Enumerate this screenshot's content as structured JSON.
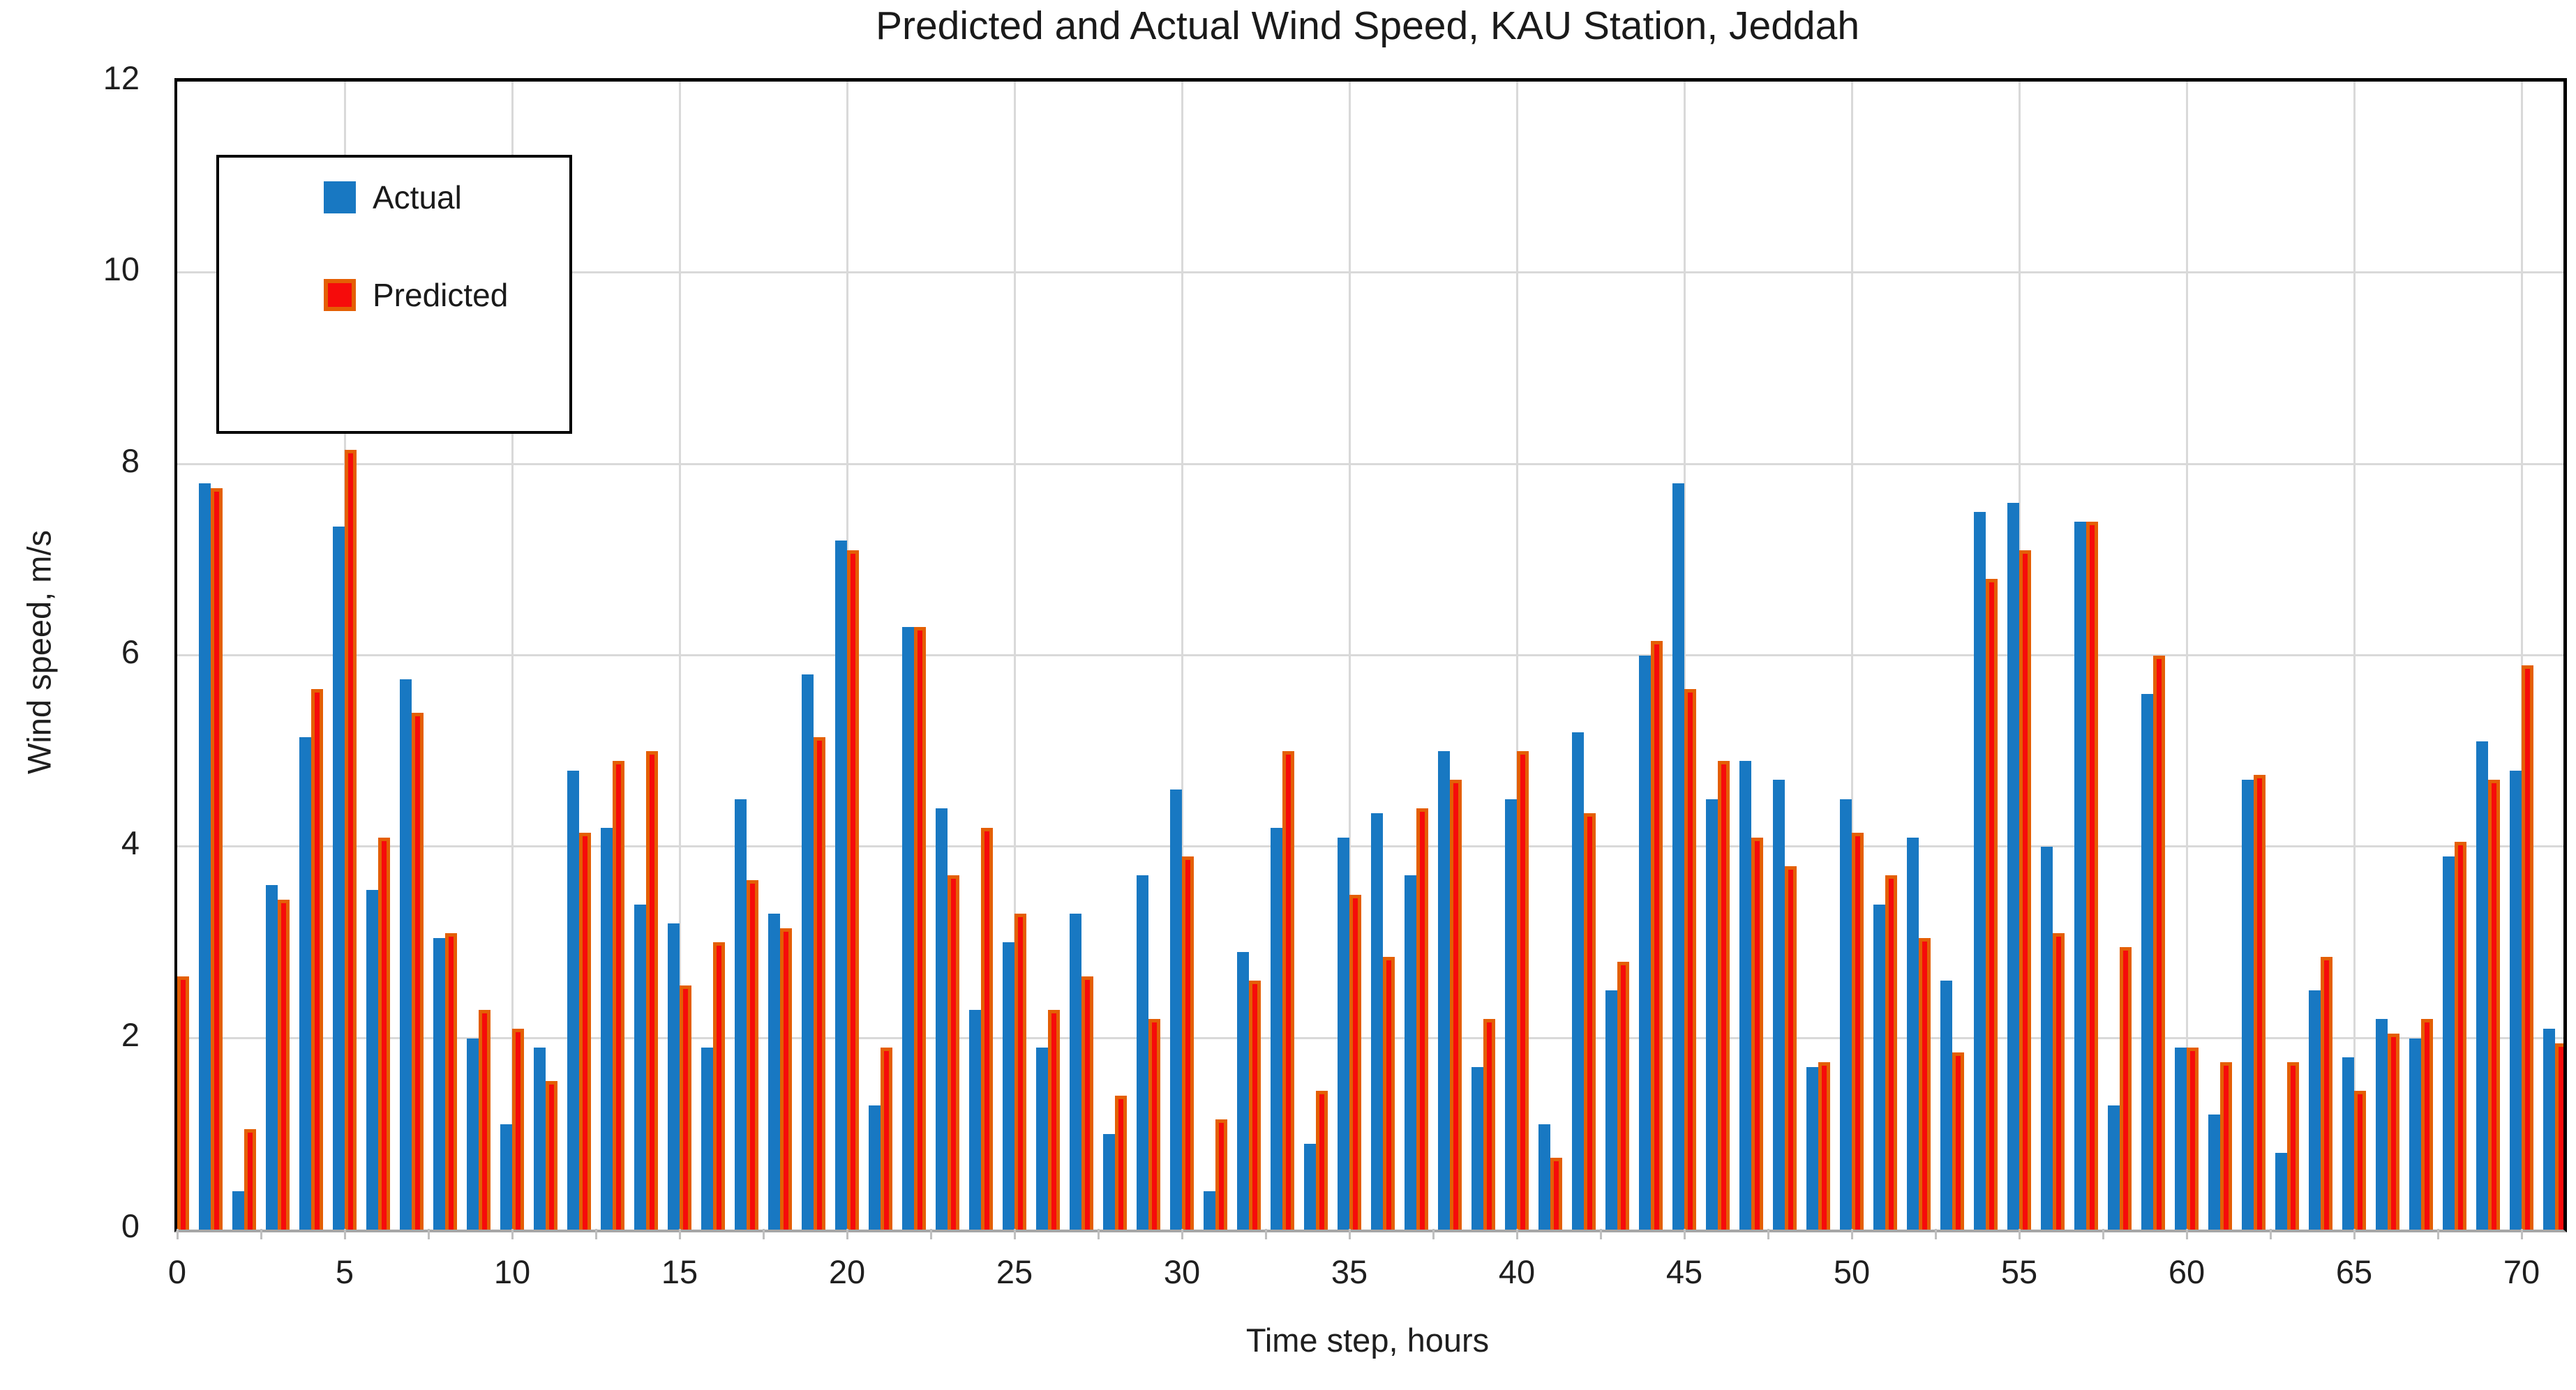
{
  "chart_data": {
    "type": "bar",
    "title": "Predicted and Actual Wind Speed, KAU Station, Jeddah",
    "xlabel": "Time step, hours",
    "ylabel": "Wind speed, m/s",
    "ylim": [
      0,
      12
    ],
    "xlim": [
      0,
      71.25
    ],
    "grid": {
      "horizontal_every": 2,
      "vertical_every": 5,
      "color": "#d9d9d9"
    },
    "legend_position": "upper-left",
    "y_ticks": [
      0,
      2,
      4,
      6,
      8,
      10,
      12
    ],
    "x_tick_labels": [
      0,
      5,
      10,
      15,
      20,
      25,
      30,
      35,
      40,
      45,
      50,
      55,
      60,
      65,
      70
    ],
    "x_minor_tick_step": 2.5,
    "x": [
      0,
      1,
      2,
      3,
      4,
      5,
      6,
      7,
      8,
      9,
      10,
      11,
      12,
      13,
      14,
      15,
      16,
      17,
      18,
      19,
      20,
      21,
      22,
      23,
      24,
      25,
      26,
      27,
      28,
      29,
      30,
      31,
      32,
      33,
      34,
      35,
      36,
      37,
      38,
      39,
      40,
      41,
      42,
      43,
      44,
      45,
      46,
      47,
      48,
      49,
      50,
      51,
      52,
      53,
      54,
      55,
      56,
      57,
      58,
      59,
      60,
      61,
      62,
      63,
      64,
      65,
      66,
      67,
      68,
      69,
      70,
      71
    ],
    "series": [
      {
        "name": "Actual",
        "color": "#1878c2",
        "values": [
          null,
          7.8,
          0.4,
          3.6,
          5.15,
          7.35,
          3.55,
          5.75,
          3.05,
          2.0,
          1.1,
          1.9,
          4.8,
          4.2,
          3.4,
          3.2,
          1.9,
          4.5,
          3.3,
          5.8,
          7.2,
          1.3,
          6.3,
          4.4,
          2.3,
          3.0,
          1.9,
          3.3,
          1.0,
          3.7,
          4.6,
          0.4,
          2.9,
          4.2,
          0.9,
          4.1,
          4.35,
          3.7,
          5.0,
          1.7,
          4.5,
          1.1,
          5.2,
          2.5,
          6.0,
          7.8,
          4.5,
          4.9,
          4.7,
          1.7,
          4.5,
          3.4,
          4.1,
          2.6,
          7.5,
          7.6,
          4.0,
          7.4,
          1.3,
          5.6,
          1.9,
          1.2,
          4.7,
          0.8,
          2.5,
          1.8,
          2.2,
          2.0,
          3.9,
          5.1,
          4.8,
          2.1
        ]
      },
      {
        "name": "Predicted",
        "color": "#f60b0b",
        "border_color": "#e45f04",
        "values": [
          2.65,
          7.75,
          1.05,
          3.45,
          5.65,
          8.15,
          4.1,
          5.4,
          3.1,
          2.3,
          2.1,
          1.55,
          4.15,
          4.9,
          5.0,
          2.55,
          3.0,
          3.65,
          3.15,
          5.15,
          7.1,
          1.9,
          6.3,
          3.7,
          4.2,
          3.3,
          2.3,
          2.65,
          1.4,
          2.2,
          3.9,
          1.15,
          2.6,
          5.0,
          1.45,
          3.5,
          2.85,
          4.4,
          4.7,
          2.2,
          5.0,
          0.75,
          4.35,
          2.8,
          6.15,
          5.65,
          4.9,
          4.1,
          3.8,
          1.75,
          4.15,
          3.7,
          3.05,
          1.85,
          6.8,
          7.1,
          3.1,
          7.4,
          2.95,
          6.0,
          1.9,
          1.75,
          4.75,
          1.75,
          2.85,
          1.45,
          2.05,
          2.2,
          4.05,
          4.7,
          5.9,
          1.95
        ]
      }
    ]
  }
}
